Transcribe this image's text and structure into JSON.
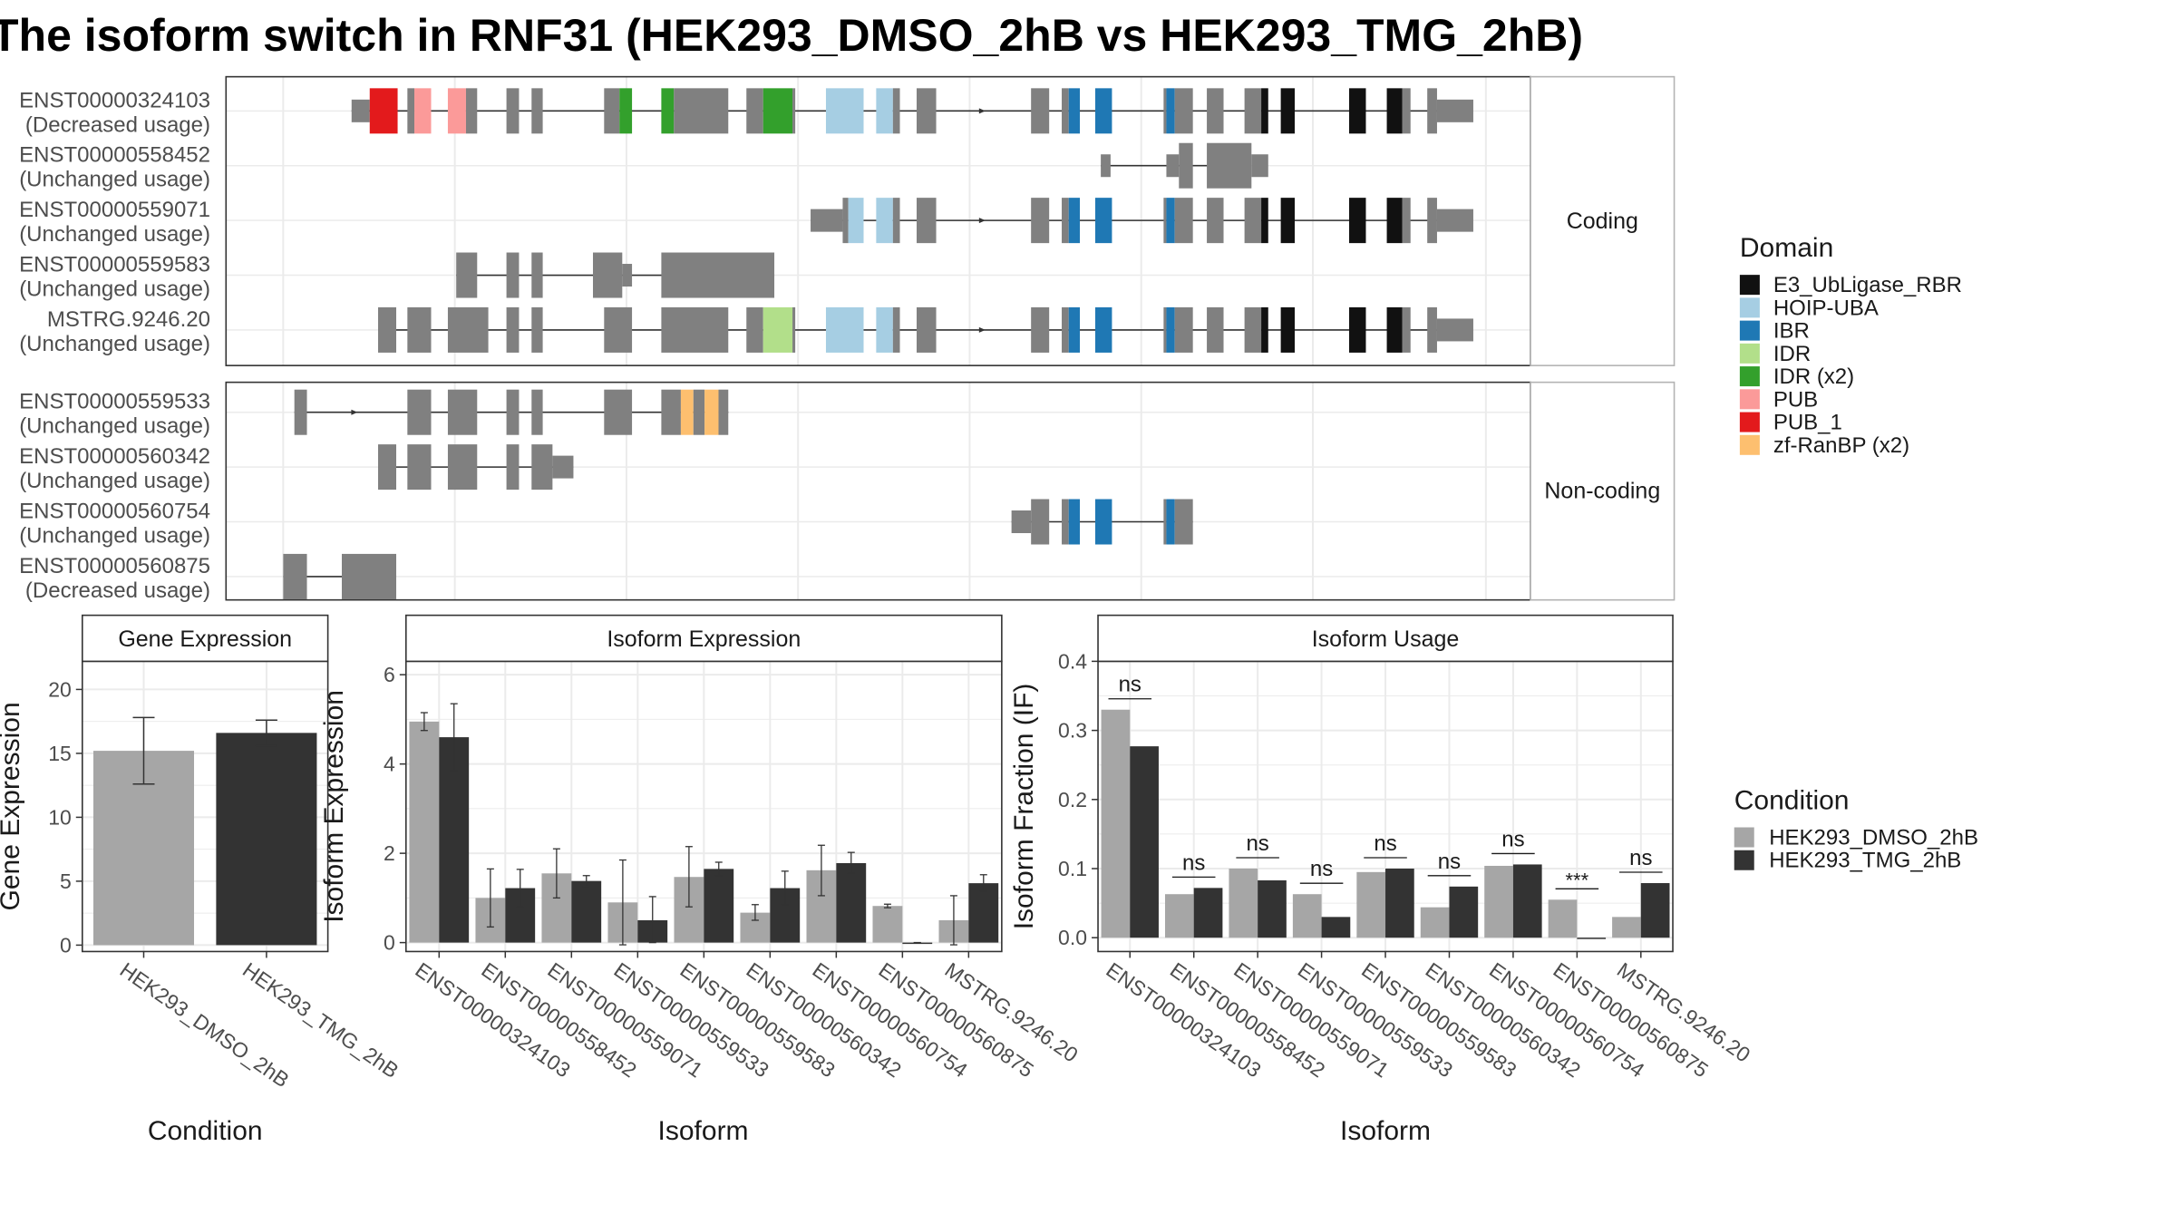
{
  "title": "The isoform switch in RNF31 (HEK293_DMSO_2hB vs HEK293_TMG_2hB)",
  "colors": {
    "exon": "#808080",
    "panel_border": "#333333",
    "strip_border": "#b3b3b3",
    "grid": "#ebebeb",
    "dmso": "#a6a6a6",
    "tmg": "#333333"
  },
  "structure": {
    "coding_strip": "Coding",
    "noncoding_strip": "Non-coding",
    "coding": [
      {
        "id": "ENST00000324103",
        "usage": "(Decreased usage)",
        "label": "ENST00000324103\n(Decreased usage)",
        "intron": [
          252,
          1055
        ],
        "exons": [
          [
            252,
            265,
            0,
            null
          ],
          [
            265,
            285,
            1,
            "PUB_1"
          ],
          [
            292,
            297,
            1,
            null
          ],
          [
            297,
            309,
            1,
            "PUB"
          ],
          [
            321,
            334,
            1,
            "PUB"
          ],
          [
            334,
            342,
            1,
            null
          ],
          [
            363,
            372,
            1,
            null
          ],
          [
            381,
            389,
            1,
            null
          ],
          [
            433,
            444,
            1,
            null
          ],
          [
            444,
            453,
            1,
            "IDR (x2)"
          ],
          [
            474,
            483,
            1,
            "IDR (x2)"
          ],
          [
            483,
            522,
            1,
            null
          ],
          [
            535,
            547,
            1,
            null
          ],
          [
            547,
            568,
            1,
            "IDR (x2)"
          ],
          [
            568,
            570,
            1,
            null
          ],
          [
            592,
            619,
            1,
            "HOIP-UBA"
          ],
          [
            628,
            640,
            1,
            "HOIP-UBA"
          ],
          [
            640,
            645,
            1,
            null
          ],
          [
            657,
            671,
            1,
            null
          ],
          [
            739,
            752,
            1,
            null
          ],
          [
            761,
            766,
            1,
            null
          ],
          [
            766,
            774,
            1,
            "IBR"
          ],
          [
            785,
            797,
            1,
            "IBR"
          ],
          [
            834,
            836,
            1,
            null
          ],
          [
            836,
            842,
            1,
            "IBR"
          ],
          [
            842,
            855,
            1,
            null
          ],
          [
            865,
            877,
            1,
            null
          ],
          [
            892,
            904,
            1,
            null
          ],
          [
            904,
            909,
            1,
            "E3_UbLigase_RBR"
          ],
          [
            918,
            928,
            1,
            "E3_UbLigase_RBR"
          ],
          [
            967,
            979,
            1,
            "E3_UbLigase_RBR"
          ],
          [
            994,
            1005,
            1,
            "E3_UbLigase_RBR"
          ],
          [
            1005,
            1011,
            1,
            null
          ],
          [
            1023,
            1030,
            1,
            null
          ],
          [
            1030,
            1056,
            0,
            null
          ]
        ],
        "arrows": [
          705
        ]
      },
      {
        "id": "ENST00000558452",
        "usage": "(Unchanged usage)",
        "label": "ENST00000558452\n(Unchanged usage)",
        "intron": [
          789,
          866
        ],
        "exons": [
          [
            789,
            796,
            0,
            null
          ],
          [
            836,
            845,
            0,
            null
          ],
          [
            845,
            855,
            1,
            null
          ],
          [
            865,
            897,
            1,
            null
          ],
          [
            897,
            909,
            0,
            null
          ]
        ],
        "arrows": []
      },
      {
        "id": "ENST00000559071",
        "usage": "(Unchanged usage)",
        "label": "ENST00000559071\n(Unchanged usage)",
        "intron": [
          581,
          1055
        ],
        "exons": [
          [
            581,
            604,
            0,
            null
          ],
          [
            604,
            608,
            1,
            null
          ],
          [
            608,
            619,
            1,
            "HOIP-UBA"
          ],
          [
            628,
            640,
            1,
            "HOIP-UBA"
          ],
          [
            640,
            645,
            1,
            null
          ],
          [
            657,
            671,
            1,
            null
          ],
          [
            739,
            752,
            1,
            null
          ],
          [
            761,
            766,
            1,
            null
          ],
          [
            766,
            774,
            1,
            "IBR"
          ],
          [
            785,
            797,
            1,
            "IBR"
          ],
          [
            834,
            836,
            1,
            null
          ],
          [
            836,
            842,
            1,
            "IBR"
          ],
          [
            842,
            855,
            1,
            null
          ],
          [
            865,
            877,
            1,
            null
          ],
          [
            892,
            904,
            1,
            null
          ],
          [
            904,
            909,
            1,
            "E3_UbLigase_RBR"
          ],
          [
            918,
            928,
            1,
            "E3_UbLigase_RBR"
          ],
          [
            967,
            979,
            1,
            "E3_UbLigase_RBR"
          ],
          [
            994,
            1005,
            1,
            "E3_UbLigase_RBR"
          ],
          [
            1005,
            1011,
            1,
            null
          ],
          [
            1023,
            1030,
            1,
            null
          ],
          [
            1030,
            1056,
            0,
            null
          ]
        ],
        "arrows": [
          705
        ]
      },
      {
        "id": "ENST00000559583",
        "usage": "(Unchanged usage)",
        "label": "ENST00000559583\n(Unchanged usage)",
        "intron": [
          327,
          555
        ],
        "exons": [
          [
            327,
            342,
            1,
            null
          ],
          [
            363,
            372,
            1,
            null
          ],
          [
            381,
            389,
            1,
            null
          ],
          [
            425,
            446,
            1,
            null
          ],
          [
            446,
            453,
            0,
            null
          ],
          [
            474,
            555,
            1,
            null
          ]
        ],
        "arrows": []
      },
      {
        "id": "MSTRG.9246.20",
        "usage": "(Unchanged usage)",
        "label": "MSTRG.9246.20\n(Unchanged usage)",
        "intron": [
          271,
          1055
        ],
        "exons": [
          [
            271,
            284,
            1,
            null
          ],
          [
            292,
            309,
            1,
            null
          ],
          [
            321,
            350,
            1,
            null
          ],
          [
            363,
            372,
            1,
            null
          ],
          [
            381,
            389,
            1,
            null
          ],
          [
            433,
            453,
            1,
            null
          ],
          [
            474,
            522,
            1,
            null
          ],
          [
            535,
            547,
            1,
            null
          ],
          [
            547,
            568,
            1,
            "IDR"
          ],
          [
            568,
            570,
            1,
            null
          ],
          [
            592,
            619,
            1,
            "HOIP-UBA"
          ],
          [
            628,
            640,
            1,
            "HOIP-UBA"
          ],
          [
            640,
            645,
            1,
            null
          ],
          [
            657,
            671,
            1,
            null
          ],
          [
            739,
            752,
            1,
            null
          ],
          [
            761,
            766,
            1,
            null
          ],
          [
            766,
            774,
            1,
            "IBR"
          ],
          [
            785,
            797,
            1,
            "IBR"
          ],
          [
            834,
            836,
            1,
            null
          ],
          [
            836,
            842,
            1,
            "IBR"
          ],
          [
            842,
            855,
            1,
            null
          ],
          [
            865,
            877,
            1,
            null
          ],
          [
            892,
            904,
            1,
            null
          ],
          [
            904,
            909,
            1,
            "E3_UbLigase_RBR"
          ],
          [
            918,
            928,
            1,
            "E3_UbLigase_RBR"
          ],
          [
            967,
            979,
            1,
            "E3_UbLigase_RBR"
          ],
          [
            994,
            1005,
            1,
            "E3_UbLigase_RBR"
          ],
          [
            1005,
            1011,
            1,
            null
          ],
          [
            1023,
            1030,
            1,
            null
          ],
          [
            1030,
            1056,
            0,
            null
          ]
        ],
        "arrows": [
          705
        ]
      }
    ],
    "noncoding": [
      {
        "id": "ENST00000559533",
        "usage": "(Unchanged usage)",
        "label": "ENST00000559533\n(Unchanged usage)",
        "intron": [
          211,
          522
        ],
        "exons": [
          [
            211,
            220,
            1,
            null
          ],
          [
            292,
            309,
            1,
            null
          ],
          [
            321,
            342,
            1,
            null
          ],
          [
            363,
            372,
            1,
            null
          ],
          [
            381,
            389,
            1,
            null
          ],
          [
            433,
            453,
            1,
            null
          ],
          [
            474,
            488,
            1,
            null
          ],
          [
            488,
            497,
            1,
            "zf-RanBP (x2)"
          ],
          [
            497,
            505,
            1,
            null
          ],
          [
            505,
            515,
            1,
            "zf-RanBP (x2)"
          ],
          [
            515,
            522,
            1,
            null
          ]
        ],
        "arrows": [
          255
        ]
      },
      {
        "id": "ENST00000560342",
        "usage": "(Unchanged usage)",
        "label": "ENST00000560342\n(Unchanged usage)",
        "intron": [
          271,
          411
        ],
        "exons": [
          [
            271,
            284,
            1,
            null
          ],
          [
            292,
            309,
            1,
            null
          ],
          [
            321,
            342,
            1,
            null
          ],
          [
            363,
            372,
            1,
            null
          ],
          [
            381,
            396,
            1,
            null
          ],
          [
            396,
            411,
            0,
            null
          ]
        ],
        "arrows": []
      },
      {
        "id": "ENST00000560754",
        "usage": "(Unchanged usage)",
        "label": "ENST00000560754\n(Unchanged usage)",
        "intron": [
          725,
          855
        ],
        "exons": [
          [
            725,
            739,
            0,
            null
          ],
          [
            739,
            752,
            1,
            null
          ],
          [
            761,
            766,
            1,
            null
          ],
          [
            766,
            774,
            1,
            "IBR"
          ],
          [
            785,
            797,
            1,
            "IBR"
          ],
          [
            834,
            836,
            1,
            null
          ],
          [
            836,
            842,
            1,
            "IBR"
          ],
          [
            842,
            855,
            1,
            null
          ]
        ],
        "arrows": []
      },
      {
        "id": "ENST00000560875",
        "usage": "(Decreased usage)",
        "label": "ENST00000560875\n(Decreased usage)",
        "intron": [
          203,
          284
        ],
        "exons": [
          [
            203,
            220,
            1,
            null
          ],
          [
            245,
            284,
            1,
            null
          ]
        ],
        "arrows": []
      }
    ]
  },
  "legend_domain": {
    "title": "Domain",
    "items": [
      {
        "label": "E3_UbLigase_RBR",
        "color": "#111111"
      },
      {
        "label": "HOIP-UBA",
        "color": "#a6cee3"
      },
      {
        "label": "IBR",
        "color": "#1f78b4"
      },
      {
        "label": "IDR",
        "color": "#b2df8a"
      },
      {
        "label": "IDR (x2)",
        "color": "#33a02c"
      },
      {
        "label": "PUB",
        "color": "#fb9a99"
      },
      {
        "label": "PUB_1",
        "color": "#e31a1c"
      },
      {
        "label": "zf-RanBP (x2)",
        "color": "#fdbf6f"
      }
    ]
  },
  "legend_condition": {
    "title": "Condition",
    "items": [
      {
        "label": "HEK293_DMSO_2hB",
        "color": "#a6a6a6"
      },
      {
        "label": "HEK293_TMG_2hB",
        "color": "#333333"
      }
    ]
  },
  "chart_data": [
    {
      "type": "bar",
      "title": "Gene Expression",
      "xlabel": "Condition",
      "ylabel": "Gene Expression",
      "ylim": [
        -0.5,
        22.2
      ],
      "yticks": [
        0,
        5,
        10,
        15,
        20
      ],
      "categories": [
        "HEK293_DMSO_2hB",
        "HEK293_TMG_2hB"
      ],
      "values": [
        15.2,
        16.6
      ],
      "err_low": [
        12.6,
        15.6
      ],
      "err_high": [
        17.8,
        17.6
      ]
    },
    {
      "type": "bar",
      "title": "Isoform Expression",
      "xlabel": "Isoform",
      "ylabel": "Isoform Expression",
      "ylim": [
        -0.2,
        6.3
      ],
      "yticks": [
        0,
        2,
        4,
        6
      ],
      "categories": [
        "ENST00000324103",
        "ENST00000558452",
        "ENST00000559071",
        "ENST00000559533",
        "ENST00000559583",
        "ENST00000560342",
        "ENST00000560754",
        "ENST00000560875",
        "MSTRG.9246.20"
      ],
      "series": [
        {
          "name": "HEK293_DMSO_2hB",
          "values": [
            4.95,
            1.0,
            1.55,
            0.9,
            1.47,
            0.67,
            1.62,
            0.82,
            0.5
          ],
          "err_low": [
            4.75,
            0.35,
            1.0,
            -0.05,
            0.8,
            0.5,
            1.05,
            0.78,
            -0.05
          ],
          "err_high": [
            5.15,
            1.65,
            2.1,
            1.85,
            2.15,
            0.85,
            2.18,
            0.86,
            1.05
          ]
        },
        {
          "name": "HEK293_TMG_2hB",
          "values": [
            4.6,
            1.22,
            1.38,
            0.5,
            1.65,
            1.22,
            1.78,
            0.0,
            1.33
          ],
          "err_low": [
            3.85,
            0.8,
            1.25,
            0.0,
            1.5,
            0.85,
            1.55,
            0.0,
            1.15
          ],
          "err_high": [
            5.35,
            1.64,
            1.5,
            1.03,
            1.8,
            1.6,
            2.02,
            0.0,
            1.52
          ]
        }
      ]
    },
    {
      "type": "bar",
      "title": "Isoform Usage",
      "xlabel": "Isoform",
      "ylabel": "Isoform Fraction (IF)",
      "ylim": [
        -0.02,
        0.4
      ],
      "yticks": [
        0.0,
        0.1,
        0.2,
        0.3,
        0.4
      ],
      "ytick_labels": [
        "0.0",
        "0.1",
        "0.2",
        "0.3",
        "0.4"
      ],
      "categories": [
        "ENST00000324103",
        "ENST00000558452",
        "ENST00000559071",
        "ENST00000559533",
        "ENST00000559583",
        "ENST00000560342",
        "ENST00000560754",
        "ENST00000560875",
        "MSTRG.9246.20"
      ],
      "series": [
        {
          "name": "HEK293_DMSO_2hB",
          "values": [
            0.33,
            0.063,
            0.1,
            0.063,
            0.095,
            0.044,
            0.104,
            0.055,
            0.03
          ]
        },
        {
          "name": "HEK293_TMG_2hB",
          "values": [
            0.277,
            0.072,
            0.083,
            0.03,
            0.1,
            0.074,
            0.106,
            0.0,
            0.079
          ]
        }
      ],
      "significance": [
        "ns",
        "ns",
        "ns",
        "ns",
        "ns",
        "ns",
        "ns",
        "***",
        "ns"
      ]
    }
  ]
}
